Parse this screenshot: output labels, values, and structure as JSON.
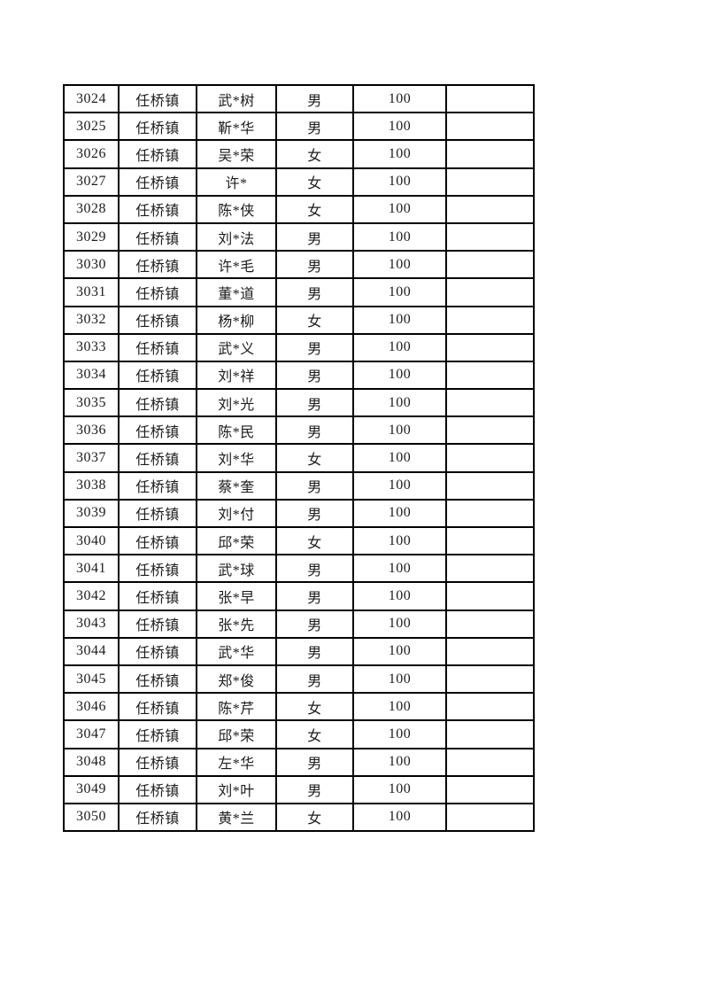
{
  "page": {
    "background_color": "#ffffff",
    "text_color": "#1c1c1c",
    "table_border_color": "#000000"
  },
  "table": {
    "column_names": [
      "serial-cell",
      "town-cell",
      "name-cell",
      "gender-cell",
      "score-cell",
      "remark-cell"
    ],
    "rows": [
      [
        "3024",
        "任桥镇",
        "武*树",
        "男",
        "100",
        ""
      ],
      [
        "3025",
        "任桥镇",
        "靳*华",
        "男",
        "100",
        ""
      ],
      [
        "3026",
        "任桥镇",
        "吴*荣",
        "女",
        "100",
        ""
      ],
      [
        "3027",
        "任桥镇",
        "许*",
        "女",
        "100",
        ""
      ],
      [
        "3028",
        "任桥镇",
        "陈*侠",
        "女",
        "100",
        ""
      ],
      [
        "3029",
        "任桥镇",
        "刘*法",
        "男",
        "100",
        ""
      ],
      [
        "3030",
        "任桥镇",
        "许*毛",
        "男",
        "100",
        ""
      ],
      [
        "3031",
        "任桥镇",
        "董*道",
        "男",
        "100",
        ""
      ],
      [
        "3032",
        "任桥镇",
        "杨*柳",
        "女",
        "100",
        ""
      ],
      [
        "3033",
        "任桥镇",
        "武*义",
        "男",
        "100",
        ""
      ],
      [
        "3034",
        "任桥镇",
        "刘*祥",
        "男",
        "100",
        ""
      ],
      [
        "3035",
        "任桥镇",
        "刘*光",
        "男",
        "100",
        ""
      ],
      [
        "3036",
        "任桥镇",
        "陈*民",
        "男",
        "100",
        ""
      ],
      [
        "3037",
        "任桥镇",
        "刘*华",
        "女",
        "100",
        ""
      ],
      [
        "3038",
        "任桥镇",
        "蔡*奎",
        "男",
        "100",
        ""
      ],
      [
        "3039",
        "任桥镇",
        "刘*付",
        "男",
        "100",
        ""
      ],
      [
        "3040",
        "任桥镇",
        "邱*荣",
        "女",
        "100",
        ""
      ],
      [
        "3041",
        "任桥镇",
        "武*球",
        "男",
        "100",
        ""
      ],
      [
        "3042",
        "任桥镇",
        "张*早",
        "男",
        "100",
        ""
      ],
      [
        "3043",
        "任桥镇",
        "张*先",
        "男",
        "100",
        ""
      ],
      [
        "3044",
        "任桥镇",
        "武*华",
        "男",
        "100",
        ""
      ],
      [
        "3045",
        "任桥镇",
        "郑*俊",
        "男",
        "100",
        ""
      ],
      [
        "3046",
        "任桥镇",
        "陈*芹",
        "女",
        "100",
        ""
      ],
      [
        "3047",
        "任桥镇",
        "邱*荣",
        "女",
        "100",
        ""
      ],
      [
        "3048",
        "任桥镇",
        "左*华",
        "男",
        "100",
        ""
      ],
      [
        "3049",
        "任桥镇",
        "刘*叶",
        "男",
        "100",
        ""
      ],
      [
        "3050",
        "任桥镇",
        "黄*兰",
        "女",
        "100",
        ""
      ]
    ]
  }
}
